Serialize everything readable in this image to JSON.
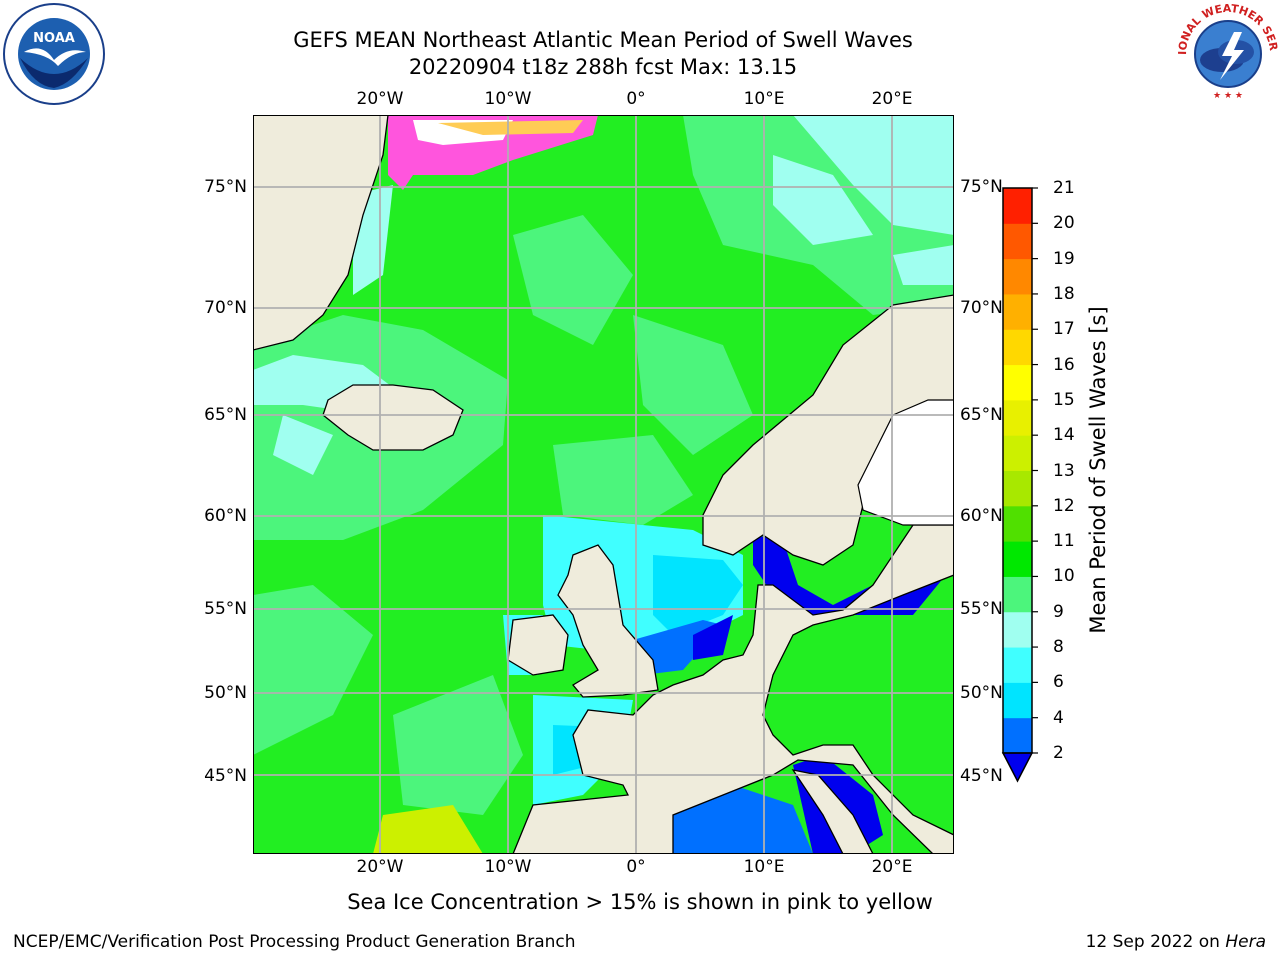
{
  "title_line1": "GEFS MEAN Northeast Atlantic Mean Period of Swell Waves",
  "title_line2": "20220904 t18z 288h fcst   Max: 13.15",
  "logos": {
    "left": {
      "icon": "noaa-logo",
      "text": "NOAA"
    },
    "right": {
      "icon": "nws-logo",
      "text": "NATIONAL WEATHER SERVICE"
    }
  },
  "map": {
    "type": "contour-map",
    "projection": "cylindrical",
    "lon_range": [
      -30,
      25
    ],
    "lat_range": [
      41,
      78
    ],
    "gridlines": true,
    "lon_labels": [
      "20°W",
      "10°W",
      "0°",
      "10°E",
      "20°E"
    ],
    "lat_labels_left": [
      "75°N",
      "70°N",
      "65°N",
      "60°N",
      "55°N",
      "50°N",
      "45°N"
    ],
    "lat_labels_right": [
      "75°N",
      "70°N",
      "65°N",
      "60°N",
      "55°N",
      "50°N",
      "45°N"
    ],
    "land_color": "#efecdc",
    "ocean_dominant_color": "#22ee22"
  },
  "colorbar": {
    "label": "Mean Period of Swell Waves [s]",
    "ticks": [
      "2",
      "4",
      "6",
      "8",
      "9",
      "10",
      "11",
      "12",
      "13",
      "14",
      "15",
      "16",
      "17",
      "18",
      "19",
      "20",
      "21"
    ],
    "colors": [
      "#0070ff",
      "#00e4ff",
      "#40ffff",
      "#a0fff0",
      "#4cf57c",
      "#00e800",
      "#50e000",
      "#a8e800",
      "#ccf000",
      "#e8f000",
      "#ffff00",
      "#ffd800",
      "#ffb000",
      "#ff8800",
      "#ff5800",
      "#ff2000"
    ],
    "extend_min_color": "#0000ee"
  },
  "ice_note": "Sea Ice Concentration > 15% is shown in pink to yellow",
  "footer_left": "NCEP/EMC/Verification Post Processing Product Generation Branch",
  "footer_right_prefix": "12 Sep 2022 on ",
  "footer_right_host": "Hera"
}
